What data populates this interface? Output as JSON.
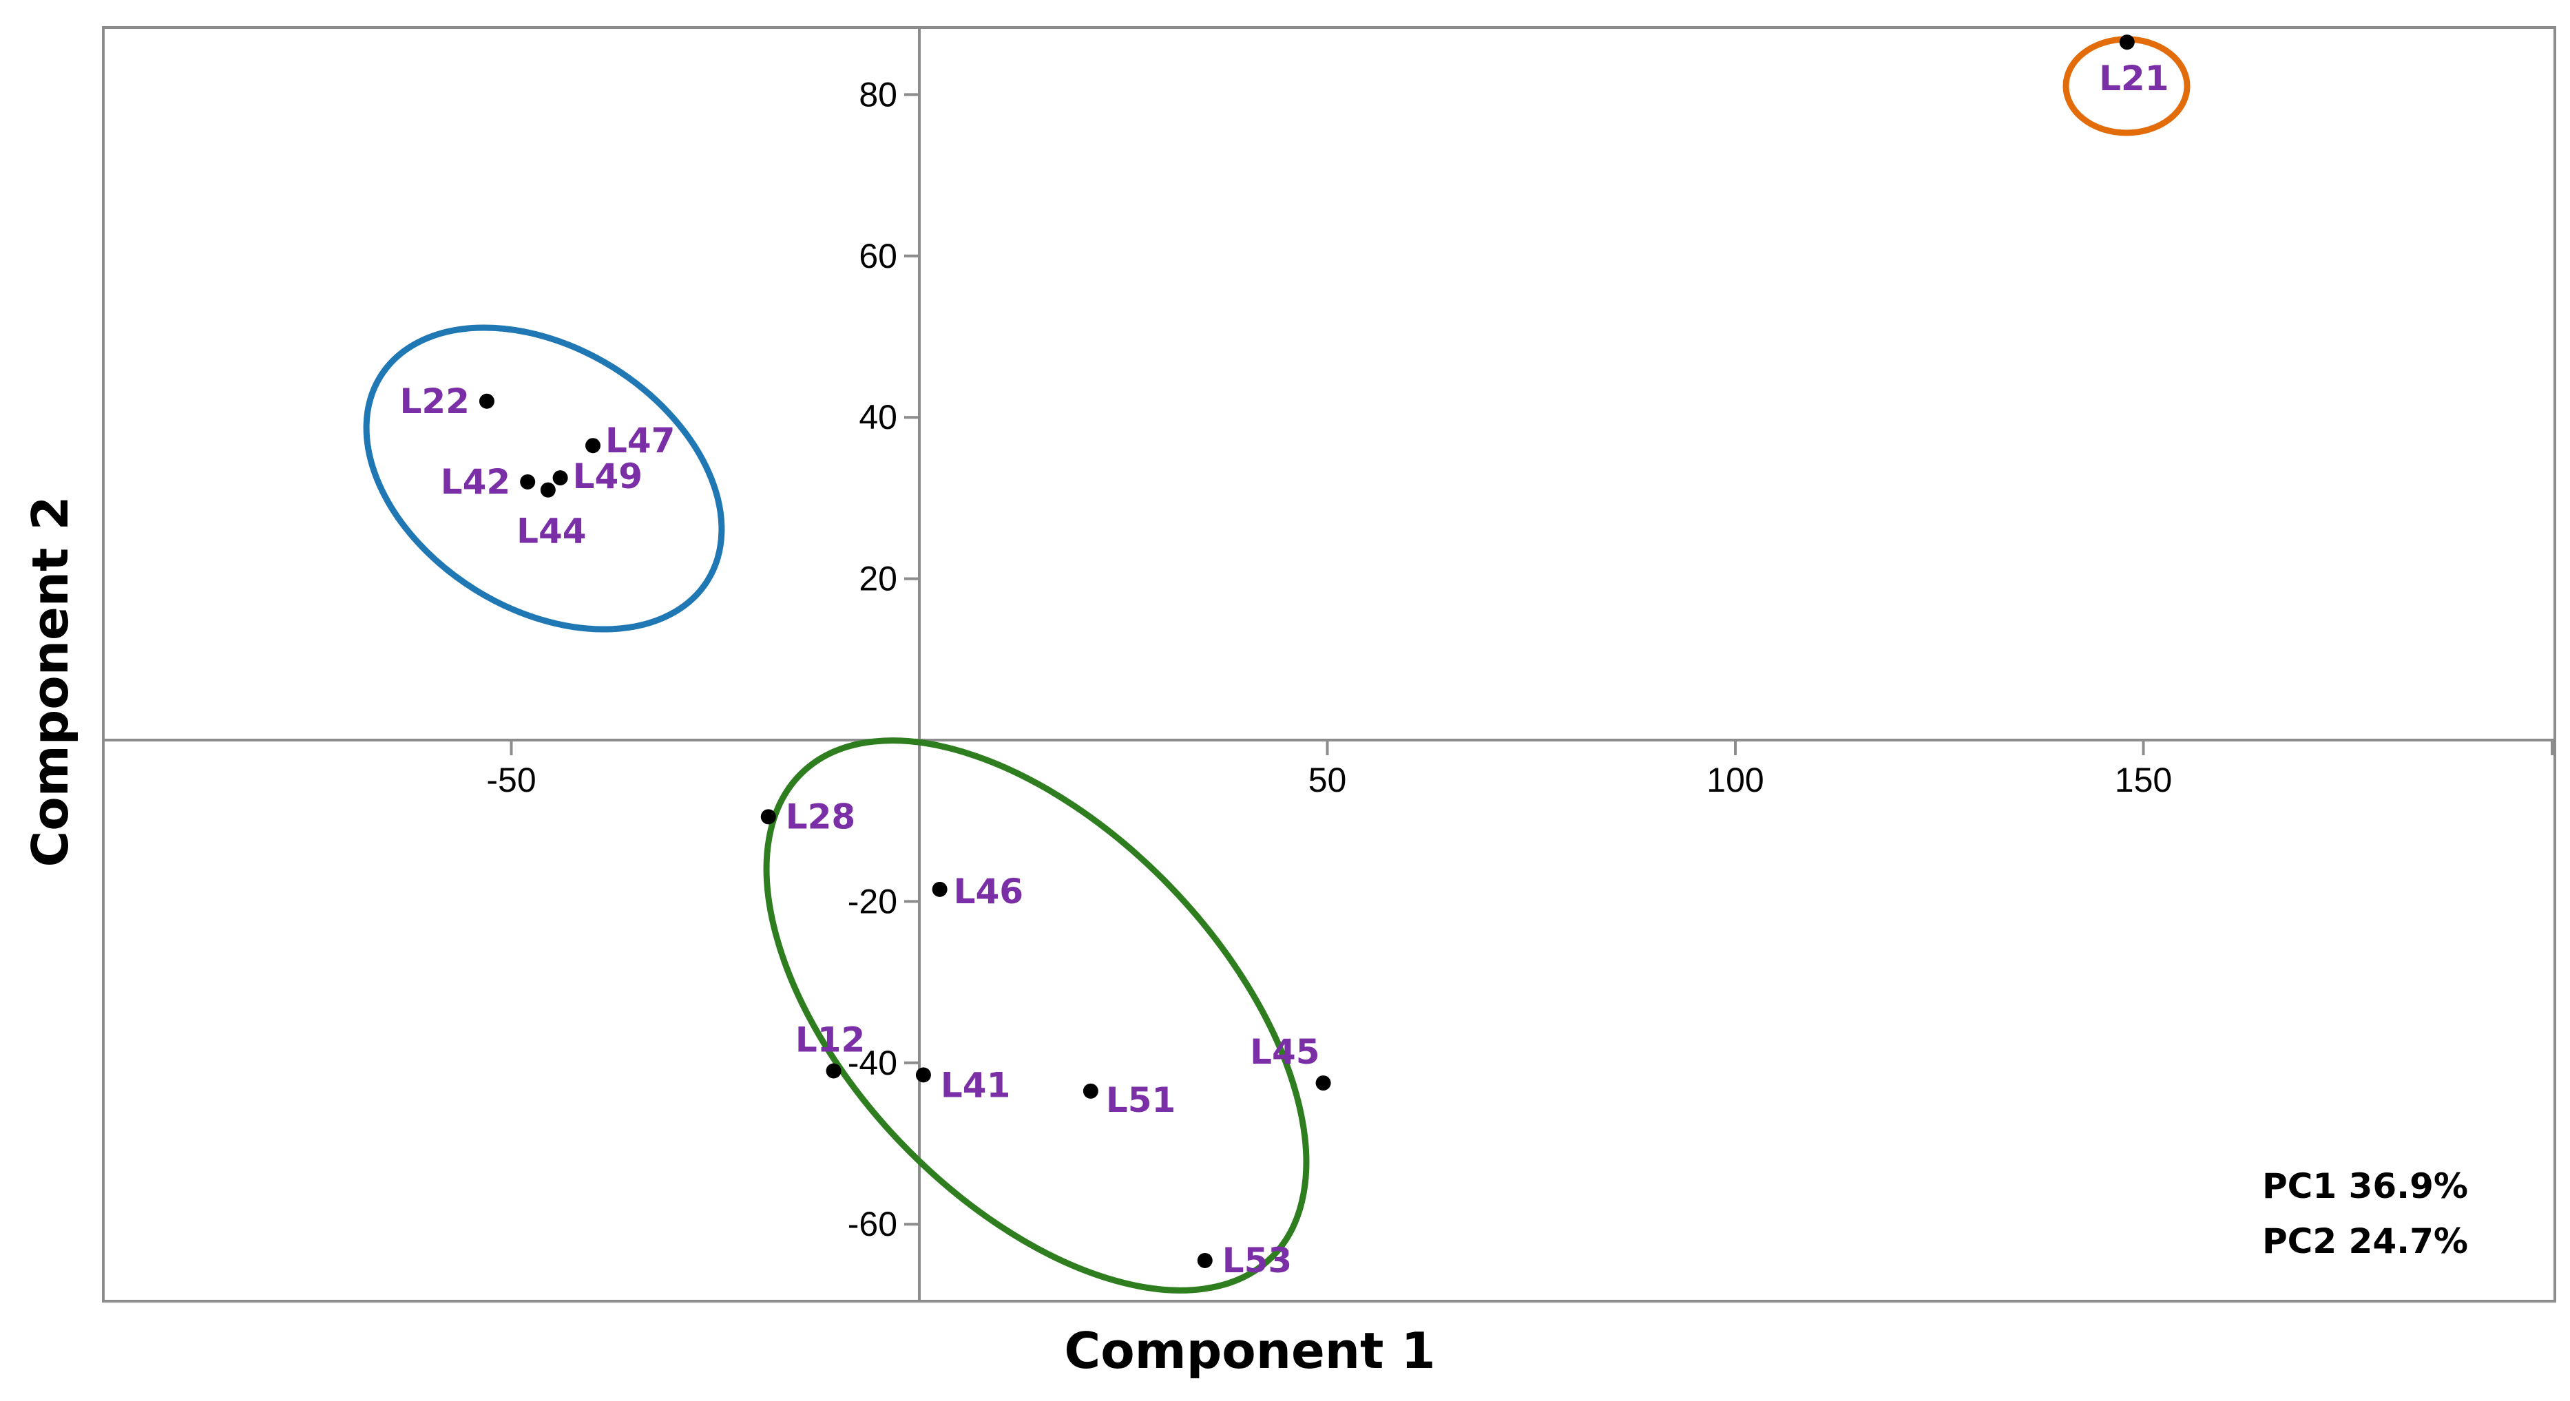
{
  "chart_data": {
    "type": "scatter",
    "xlabel": "Component 1",
    "ylabel": "Component 2",
    "xlim": [
      -100,
      200
    ],
    "ylim": [
      -70,
      90
    ],
    "x_ticks": [
      -50,
      50,
      100,
      150
    ],
    "y_ticks": [
      80,
      60,
      40,
      20,
      -20,
      -40,
      -60
    ],
    "grid": false,
    "point_color": "#000000",
    "label_color": "#7b2fa6",
    "points": [
      {
        "label": "L21",
        "x": 148,
        "y": 86.5
      },
      {
        "label": "L22",
        "x": -53,
        "y": 42
      },
      {
        "label": "L47",
        "x": -40,
        "y": 36.5
      },
      {
        "label": "L42",
        "x": -48,
        "y": 32
      },
      {
        "label": "L49",
        "x": -44,
        "y": 32.5
      },
      {
        "label": "L44",
        "x": -45.5,
        "y": 31
      },
      {
        "label": "L28",
        "x": -18.5,
        "y": -9.5
      },
      {
        "label": "L46",
        "x": 2.5,
        "y": -18.5
      },
      {
        "label": "L12",
        "x": -10.5,
        "y": -41
      },
      {
        "label": "L41",
        "x": 0.5,
        "y": -41.5
      },
      {
        "label": "L51",
        "x": 21,
        "y": -43.5
      },
      {
        "label": "L45",
        "x": 49.5,
        "y": -42.5
      },
      {
        "label": "L53",
        "x": 35,
        "y": -64.5
      }
    ],
    "groups": [
      {
        "color": "#1f77b4",
        "members": [
          "L22",
          "L47",
          "L42",
          "L49",
          "L44"
        ]
      },
      {
        "color": "#2e7d1f",
        "members": [
          "L28",
          "L46",
          "L12",
          "L41",
          "L51",
          "L45",
          "L53"
        ]
      },
      {
        "color": "#e36c0a",
        "members": [
          "L21"
        ]
      }
    ],
    "annotations": [
      "PC1 36.9%",
      "PC2 24.7%"
    ]
  }
}
